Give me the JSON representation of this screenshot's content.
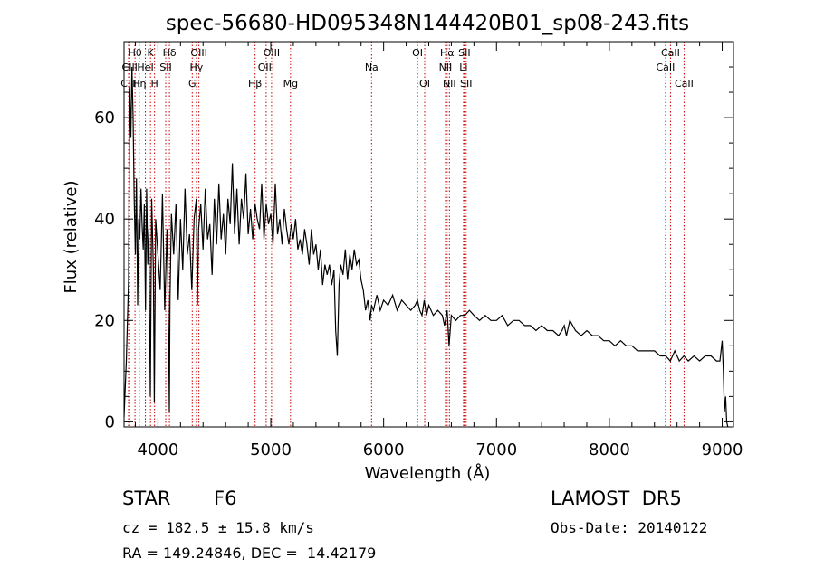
{
  "chart_data": {
    "type": "line",
    "title": "spec-56680-HD095348N144420B01_sp08-243.fits",
    "xlabel": "Wavelength (Å)",
    "ylabel": "Flux (relative)",
    "xlim": [
      3700,
      9100
    ],
    "ylim": [
      -1,
      75
    ],
    "xticks": [
      4000,
      5000,
      6000,
      7000,
      8000,
      9000
    ],
    "yticks": [
      0,
      20,
      40,
      60
    ],
    "grid": false,
    "series": [
      {
        "color": "#000000",
        "x": [
          3700,
          3720,
          3740,
          3750,
          3760,
          3770,
          3780,
          3790,
          3800,
          3810,
          3820,
          3830,
          3840,
          3850,
          3860,
          3870,
          3880,
          3890,
          3900,
          3910,
          3920,
          3933,
          3945,
          3960,
          3968,
          3980,
          4000,
          4020,
          4040,
          4060,
          4080,
          4095,
          4101,
          4107,
          4120,
          4140,
          4160,
          4180,
          4200,
          4220,
          4240,
          4260,
          4280,
          4300,
          4320,
          4340,
          4350,
          4360,
          4380,
          4400,
          4420,
          4440,
          4460,
          4480,
          4500,
          4520,
          4540,
          4560,
          4580,
          4600,
          4620,
          4640,
          4660,
          4680,
          4700,
          4720,
          4740,
          4760,
          4780,
          4800,
          4820,
          4840,
          4861,
          4880,
          4900,
          4920,
          4940,
          4960,
          4980,
          5000,
          5020,
          5040,
          5060,
          5080,
          5100,
          5120,
          5140,
          5160,
          5183,
          5200,
          5220,
          5240,
          5260,
          5280,
          5300,
          5320,
          5340,
          5360,
          5380,
          5400,
          5420,
          5440,
          5460,
          5480,
          5500,
          5520,
          5540,
          5560,
          5575,
          5590,
          5605,
          5620,
          5640,
          5660,
          5680,
          5700,
          5720,
          5740,
          5760,
          5780,
          5800,
          5820,
          5840,
          5860,
          5880,
          5893,
          5910,
          5940,
          5970,
          6000,
          6040,
          6080,
          6120,
          6160,
          6200,
          6240,
          6280,
          6300,
          6320,
          6340,
          6360,
          6380,
          6400,
          6440,
          6480,
          6520,
          6540,
          6563,
          6580,
          6600,
          6640,
          6680,
          6720,
          6760,
          6800,
          6850,
          6900,
          6950,
          7000,
          7050,
          7100,
          7150,
          7200,
          7250,
          7300,
          7350,
          7400,
          7450,
          7500,
          7550,
          7580,
          7600,
          7620,
          7650,
          7700,
          7750,
          7800,
          7850,
          7900,
          7950,
          8000,
          8050,
          8100,
          8150,
          8200,
          8250,
          8300,
          8350,
          8400,
          8450,
          8500,
          8540,
          8580,
          8620,
          8660,
          8700,
          8750,
          8800,
          8850,
          8900,
          8950,
          8980,
          9000,
          9010,
          9020,
          9030,
          9040,
          9050
        ],
        "y": [
          1,
          12,
          28,
          66,
          56,
          70,
          60,
          44,
          33,
          48,
          23,
          40,
          36,
          46,
          39,
          34,
          43,
          22,
          46,
          31,
          38,
          5,
          44,
          30,
          4,
          40,
          33,
          26,
          45,
          22,
          38,
          18,
          2,
          24,
          41,
          33,
          43,
          24,
          40,
          30,
          46,
          33,
          37,
          26,
          40,
          44,
          23,
          38,
          43,
          34,
          46,
          36,
          39,
          29,
          44,
          35,
          47,
          36,
          41,
          33,
          44,
          39,
          51,
          37,
          46,
          35,
          44,
          40,
          49,
          37,
          42,
          36,
          43,
          40,
          38,
          47,
          36,
          43,
          39,
          41,
          35,
          47,
          37,
          40,
          35,
          42,
          38,
          35,
          39,
          36,
          40,
          34,
          36,
          33,
          38,
          35,
          31,
          38,
          33,
          35,
          30,
          34,
          27,
          31,
          29,
          31,
          27,
          30,
          18,
          13,
          27,
          31,
          29,
          34,
          28,
          33,
          30,
          34,
          31,
          32,
          28,
          26,
          22,
          24,
          20,
          23,
          22,
          25,
          22,
          24,
          23,
          25,
          22,
          24,
          23,
          22,
          23,
          24,
          22,
          21,
          24,
          21,
          23,
          21,
          22,
          21,
          19,
          22,
          15,
          21,
          20,
          21,
          21,
          22,
          21,
          20,
          21,
          20,
          20,
          21,
          19,
          20,
          20,
          19,
          19,
          18,
          19,
          18,
          18,
          17,
          18,
          19,
          17,
          20,
          18,
          17,
          18,
          17,
          17,
          16,
          16,
          15,
          16,
          15,
          15,
          14,
          14,
          14,
          14,
          13,
          13,
          12,
          14,
          12,
          13,
          12,
          13,
          12,
          13,
          13,
          12,
          12,
          16,
          10,
          2,
          5,
          0,
          -1
        ]
      }
    ],
    "line_markers": [
      {
        "label": "Hθ",
        "x": 3797,
        "row": 1
      },
      {
        "label": "CIII",
        "x": 3750,
        "row": 2
      },
      {
        "label": "CIII",
        "x": 3740,
        "row": 3
      },
      {
        "label": "Hη",
        "x": 3835,
        "row": 3
      },
      {
        "label": "K",
        "x": 3934,
        "row": 1
      },
      {
        "label": "HeI",
        "x": 3889,
        "row": 2
      },
      {
        "label": "H",
        "x": 3970,
        "row": 3
      },
      {
        "label": "Hδ",
        "x": 4102,
        "row": 1
      },
      {
        "label": "SII",
        "x": 4069,
        "row": 2
      },
      {
        "label": "OIII",
        "x": 4363,
        "row": 1
      },
      {
        "label": "Hγ",
        "x": 4341,
        "row": 2
      },
      {
        "label": "G",
        "x": 4304,
        "row": 3
      },
      {
        "label": "OIII",
        "x": 5007,
        "row": 1
      },
      {
        "label": "OIII",
        "x": 4959,
        "row": 2
      },
      {
        "label": "Hβ",
        "x": 4861,
        "row": 3
      },
      {
        "label": "Mg",
        "x": 5175,
        "row": 3
      },
      {
        "label": "Na",
        "x": 5893,
        "row": 2
      },
      {
        "label": "OI",
        "x": 6300,
        "row": 1
      },
      {
        "label": "OI",
        "x": 6364,
        "row": 3
      },
      {
        "label": "Hα",
        "x": 6563,
        "row": 1
      },
      {
        "label": "SII",
        "x": 6716,
        "row": 1
      },
      {
        "label": "NII",
        "x": 6548,
        "row": 2
      },
      {
        "label": "Li",
        "x": 6708,
        "row": 2
      },
      {
        "label": "NII",
        "x": 6583,
        "row": 3
      },
      {
        "label": "SII",
        "x": 6731,
        "row": 3
      },
      {
        "label": "CaII",
        "x": 8542,
        "row": 1
      },
      {
        "label": "CaII",
        "x": 8498,
        "row": 2
      },
      {
        "label": "CaII",
        "x": 8662,
        "row": 3
      }
    ],
    "marker_color": "#cc0000"
  },
  "info": {
    "object_class": "STAR",
    "subclass": "F6",
    "survey": "LAMOST  DR5",
    "velocity": "cz = 182.5 ± 15.8 km/s",
    "obs_date": "Obs-Date: 20140122",
    "coords": "RA = 149.24846, DEC =  14.42179"
  }
}
